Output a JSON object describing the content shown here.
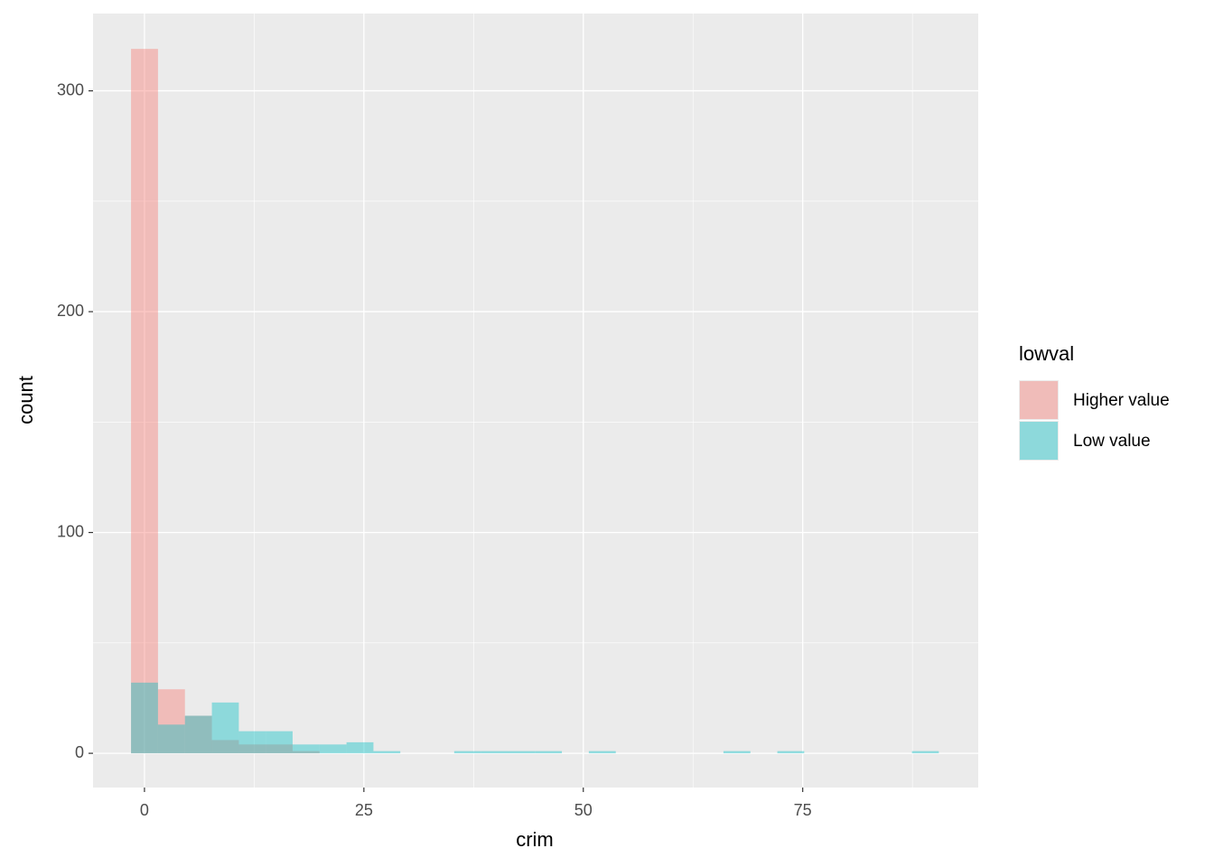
{
  "chart_data": {
    "type": "histogram",
    "x_label": "crim",
    "y_label": "count",
    "legend_title": "lowval",
    "bins": [
      -1.53,
      1.54,
      4.61,
      7.68,
      10.75,
      13.81,
      16.88,
      19.95,
      23.02,
      26.09,
      29.15,
      32.22,
      35.29,
      38.36,
      41.43,
      44.49,
      47.56,
      50.63,
      53.7,
      56.77,
      59.83,
      62.9,
      65.97,
      69.04,
      72.11,
      75.17,
      78.24,
      81.31,
      84.38,
      87.45,
      90.51
    ],
    "series": [
      {
        "name": "Higher value",
        "color": "#F8766D",
        "values": [
          319,
          29,
          17,
          6,
          4,
          4,
          1,
          0,
          0,
          0,
          0,
          0,
          0,
          0,
          0,
          0,
          0,
          0,
          0,
          0,
          0,
          0,
          0,
          0,
          0,
          0,
          0,
          0,
          0,
          0
        ]
      },
      {
        "name": "Low value",
        "color": "#00BFC4",
        "values": [
          32,
          13,
          17,
          23,
          10,
          10,
          4,
          4,
          5,
          1,
          0,
          0,
          1,
          1,
          1,
          1,
          0,
          1,
          0,
          0,
          0,
          0,
          1,
          0,
          1,
          0,
          0,
          0,
          0,
          1
        ]
      }
    ],
    "opacity": 0.4,
    "xlim": [
      -5.86,
      95
    ],
    "ylim": [
      -15.5,
      335
    ],
    "xticks": [
      0,
      25,
      50,
      75
    ],
    "yticks": [
      0,
      100,
      200,
      300
    ],
    "minor_xgrid": [
      12.5,
      37.5,
      62.5,
      87.5
    ],
    "minor_ygrid": [
      50,
      150,
      250
    ],
    "grid": true
  }
}
